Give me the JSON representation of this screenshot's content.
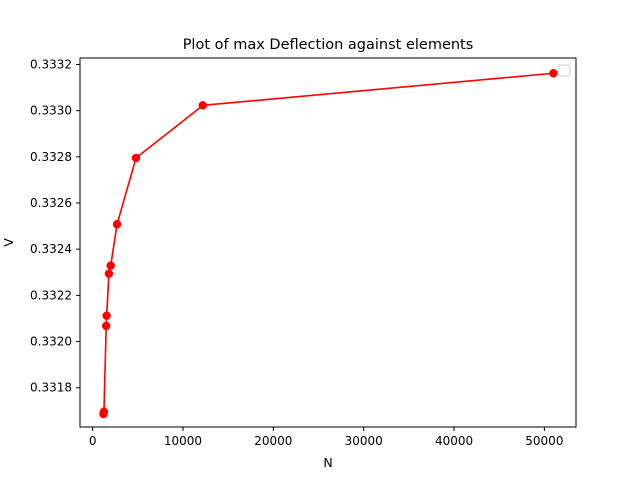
{
  "chart_data": {
    "type": "line",
    "title": "Plot of max Deflection against elements",
    "xlabel": "N",
    "ylabel": "V",
    "xlim": [
      -1400,
      53500
    ],
    "ylim": [
      0.33163,
      0.333228
    ],
    "xticks": [
      0,
      10000,
      20000,
      30000,
      40000,
      50000
    ],
    "xtick_labels": [
      "0",
      "10000",
      "20000",
      "30000",
      "40000",
      "50000"
    ],
    "yticks": [
      0.3318,
      0.332,
      0.3322,
      0.3324,
      0.3326,
      0.3328,
      0.333,
      0.3332
    ],
    "ytick_labels": [
      "0.3318",
      "0.3320",
      "0.3322",
      "0.3324",
      "0.3326",
      "0.3328",
      "0.3330",
      "0.3332"
    ],
    "grid": false,
    "legend": "upper right (empty)",
    "series": [
      {
        "color": "#ff0000",
        "marker": "circle",
        "x": [
          1200,
          1250,
          1500,
          1550,
          1800,
          2000,
          2700,
          4800,
          12200,
          51000
        ],
        "y": [
          0.331686,
          0.331696,
          0.332068,
          0.332112,
          0.332294,
          0.332329,
          0.332508,
          0.332795,
          0.333023,
          0.333162
        ]
      }
    ]
  }
}
